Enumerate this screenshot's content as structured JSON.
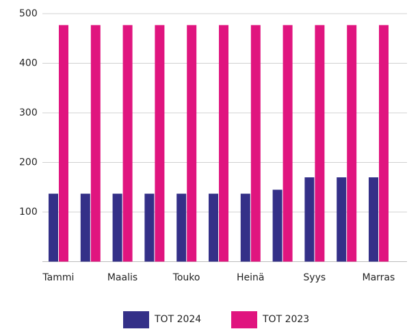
{
  "chart_data": {
    "type": "bar",
    "categories": [
      "Tammi",
      null,
      "Maalis",
      null,
      "Touko",
      null,
      "Heinä",
      null,
      "Syys",
      null,
      "Marras"
    ],
    "series": [
      {
        "name": "TOT 2024",
        "color": "#343088",
        "values": [
          137,
          137,
          137,
          137,
          137,
          137,
          137,
          145,
          170,
          170,
          170
        ]
      },
      {
        "name": "TOT 2023",
        "color": "#e0157f",
        "values": [
          477,
          477,
          477,
          477,
          477,
          477,
          477,
          477,
          477,
          477,
          477
        ]
      }
    ],
    "ylim": [
      0,
      500
    ],
    "yticks": [
      100,
      200,
      300,
      400,
      500
    ],
    "grid": true,
    "legend": "bottom"
  }
}
